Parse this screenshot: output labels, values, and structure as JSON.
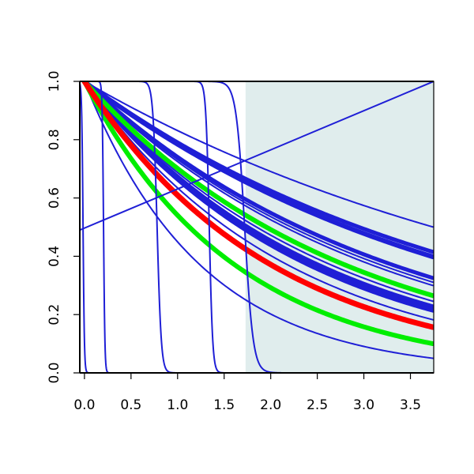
{
  "chart_data": {
    "type": "line",
    "title": "",
    "xlabel": "",
    "ylabel": "",
    "xlim": [
      -0.05,
      3.75
    ],
    "ylim": [
      0.0,
      1.0
    ],
    "x_ticks": [
      0.0,
      0.5,
      1.0,
      1.5,
      2.0,
      2.5,
      3.0,
      3.5
    ],
    "x_tick_labels": [
      "0.0",
      "0.5",
      "1.0",
      "1.5",
      "2.0",
      "2.5",
      "3.0",
      "3.5"
    ],
    "y_ticks": [
      0.0,
      0.2,
      0.4,
      0.6,
      0.8,
      1.0
    ],
    "y_tick_labels": [
      "0.0",
      "0.2",
      "0.4",
      "0.6",
      "0.8",
      "1.0"
    ],
    "grid": false,
    "legend": "none",
    "shaded_region": {
      "x_start": 1.73,
      "x_end": 3.75,
      "color": "#e0eded"
    },
    "colors": {
      "blue": "#1f1fd6",
      "red": "#ff0000",
      "green": "#00ee00",
      "axis": "#000000"
    },
    "series": [
      {
        "kind": "exp",
        "color": "blue",
        "width": 2,
        "rate": 0.185
      },
      {
        "kind": "exp",
        "color": "blue",
        "width": 2,
        "rate": 0.245
      },
      {
        "kind": "exp",
        "color": "blue",
        "width": 2,
        "rate": 0.25
      },
      {
        "kind": "exp",
        "color": "blue",
        "width": 2,
        "rate": 0.3
      },
      {
        "kind": "exp",
        "color": "blue",
        "width": 2,
        "rate": 0.312
      },
      {
        "kind": "exp",
        "color": "blue",
        "width": 2,
        "rate": 0.322
      },
      {
        "kind": "exp",
        "color": "blue",
        "width": 2,
        "rate": 0.375
      },
      {
        "kind": "exp",
        "color": "blue",
        "width": 2,
        "rate": 0.392
      },
      {
        "kind": "exp",
        "color": "blue",
        "width": 2,
        "rate": 0.405
      },
      {
        "kind": "exp",
        "color": "blue",
        "width": 2,
        "rate": 0.418
      },
      {
        "kind": "exp",
        "color": "blue",
        "width": 2,
        "rate": 0.455
      },
      {
        "kind": "exp",
        "color": "blue",
        "width": 2,
        "rate": 0.8
      },
      {
        "kind": "exp",
        "color": "blue",
        "width": 5,
        "rate": 0.235
      },
      {
        "kind": "exp",
        "color": "blue",
        "width": 5,
        "rate": 0.245
      },
      {
        "kind": "exp",
        "color": "blue",
        "width": 5,
        "rate": 0.3
      },
      {
        "kind": "exp",
        "color": "blue",
        "width": 5,
        "rate": 0.395
      },
      {
        "kind": "exp",
        "color": "blue",
        "width": 5,
        "rate": 0.41
      },
      {
        "kind": "exp",
        "color": "green",
        "width": 6,
        "rate": 0.355
      },
      {
        "kind": "exp",
        "color": "green",
        "width": 6,
        "rate": 0.615
      },
      {
        "kind": "exp",
        "color": "red",
        "width": 7,
        "rate": 0.495
      },
      {
        "kind": "linear",
        "color": "blue",
        "width": 2,
        "points": [
          [
            -0.05,
            0.49
          ],
          [
            3.75,
            1.0
          ]
        ]
      },
      {
        "kind": "step",
        "color": "blue",
        "width": 2,
        "x0": -0.015,
        "k": 140
      },
      {
        "kind": "step",
        "color": "blue",
        "width": 2,
        "x0": 0.205,
        "k": 140
      },
      {
        "kind": "step",
        "color": "blue",
        "width": 2,
        "x0": 0.78,
        "k": 45
      },
      {
        "kind": "step",
        "color": "blue",
        "width": 2,
        "x0": 1.34,
        "k": 55
      },
      {
        "kind": "step",
        "color": "blue",
        "width": 2,
        "x0": 1.72,
        "k": 22
      }
    ]
  }
}
